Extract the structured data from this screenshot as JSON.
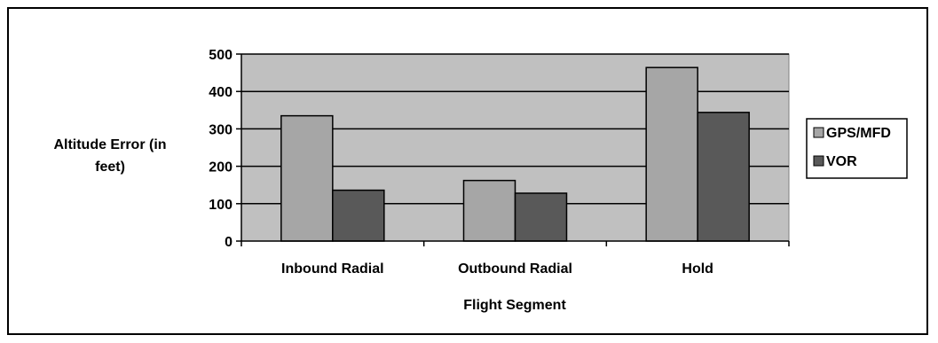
{
  "chart_data": {
    "type": "bar",
    "title": "",
    "xlabel": "Flight Segment",
    "ylabel_lines": [
      "Altitude Error (in",
      "feet)"
    ],
    "categories": [
      "Inbound Radial",
      "Outbound Radial",
      "Hold"
    ],
    "series": [
      {
        "name": "GPS/MFD",
        "values": [
          335,
          162,
          464
        ],
        "color": "#a6a6a6"
      },
      {
        "name": "VOR",
        "values": [
          136,
          128,
          344
        ],
        "color": "#595959"
      }
    ],
    "ylim": [
      0,
      500
    ],
    "yticks": [
      0,
      100,
      200,
      300,
      400,
      500
    ],
    "grid": true,
    "plot_background": "#c0c0c0",
    "legend_position": "right"
  }
}
